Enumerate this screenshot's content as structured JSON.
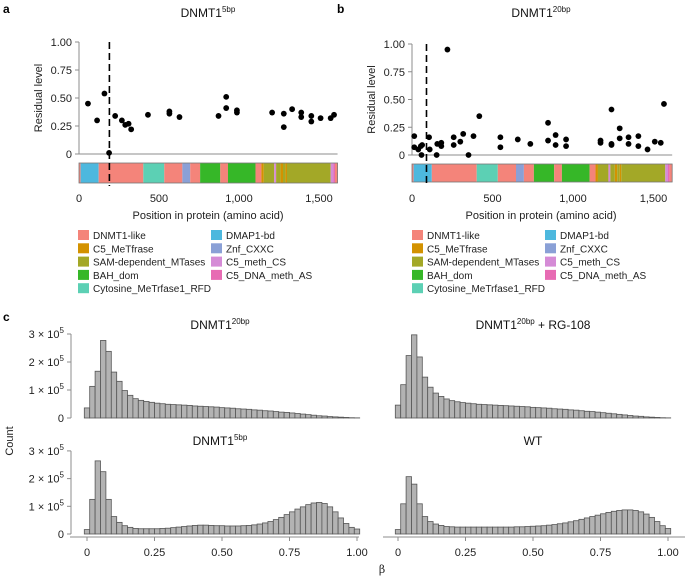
{
  "panel_labels": [
    "a",
    "b",
    "c"
  ],
  "domain_colors": {
    "DNMT1-like": "#F4847A",
    "C5_MeTfrase": "#D39200",
    "SAM-dependent_MTases": "#A3A827",
    "BAH_dom": "#36B728",
    "Cytosine_MeTrfase1_RFD": "#5CD0B4",
    "DMAP1-bd": "#4DB8DE",
    "Znf_CXXC": "#8AA0D6",
    "C5_meth_CS": "#D58BD6",
    "C5_DNA_meth_AS": "#E76BB3"
  },
  "legend": {
    "col1": [
      "DNMT1-like",
      "C5_MeTfrase",
      "SAM-dependent_MTases",
      "BAH_dom",
      "Cytosine_MeTrfase1_RFD"
    ],
    "col2": [
      "DMAP1-bd",
      "Znf_CXXC",
      "C5_meth_CS",
      "C5_DNA_meth_AS"
    ]
  },
  "chart_data": [
    {
      "id": "a",
      "type": "scatter",
      "title": {
        "base": "DNMT1",
        "sup": "5bp",
        "suffix": ""
      },
      "xlabel": "Position in protein (amino acid)",
      "ylabel": "Residual level",
      "xlim": [
        0,
        1616
      ],
      "ylim": [
        0,
        1
      ],
      "xticks": [
        0,
        500,
        1000,
        1500
      ],
      "xtick_labels": [
        "0",
        "500",
        "1,000",
        "1,500"
      ],
      "yticks": [
        0,
        0.25,
        0.5,
        0.75,
        1.0
      ],
      "ytick_labels": [
        "0",
        "0.25",
        "0.50",
        "0.75",
        "1.00"
      ],
      "dashed_line_x": 190,
      "points": [
        [
          56,
          0.45
        ],
        [
          113,
          0.3
        ],
        [
          159,
          0.54
        ],
        [
          188,
          0.01
        ],
        [
          226,
          0.34
        ],
        [
          268,
          0.3
        ],
        [
          289,
          0.26
        ],
        [
          310,
          0.27
        ],
        [
          326,
          0.22
        ],
        [
          431,
          0.35
        ],
        [
          565,
          0.38
        ],
        [
          565,
          0.36
        ],
        [
          628,
          0.33
        ],
        [
          872,
          0.34
        ],
        [
          920,
          0.51
        ],
        [
          920,
          0.41
        ],
        [
          987,
          0.39
        ],
        [
          987,
          0.37
        ],
        [
          1207,
          0.37
        ],
        [
          1280,
          0.36
        ],
        [
          1280,
          0.24
        ],
        [
          1332,
          0.4
        ],
        [
          1389,
          0.37
        ],
        [
          1389,
          0.33
        ],
        [
          1452,
          0.34
        ],
        [
          1452,
          0.29
        ],
        [
          1510,
          0.32
        ],
        [
          1573,
          0.32
        ],
        [
          1594,
          0.35
        ]
      ],
      "domains": [
        [
          0,
          10,
          "DNMT1-like"
        ],
        [
          10,
          123,
          "DMAP1-bd"
        ],
        [
          123,
          402,
          "DNMT1-like"
        ],
        [
          402,
          533,
          "Cytosine_MeTrfase1_RFD"
        ],
        [
          533,
          646,
          "DNMT1-like"
        ],
        [
          646,
          695,
          "Znf_CXXC"
        ],
        [
          695,
          757,
          "DNMT1-like"
        ],
        [
          757,
          883,
          "BAH_dom"
        ],
        [
          883,
          931,
          "DNMT1-like"
        ],
        [
          931,
          1103,
          "BAH_dom"
        ],
        [
          1103,
          1140,
          "DNMT1-like"
        ],
        [
          1140,
          1155,
          "C5_MeTfrase"
        ],
        [
          1155,
          1220,
          "SAM-dependent_MTases"
        ],
        [
          1220,
          1232,
          "C5_meth_CS"
        ],
        [
          1232,
          1260,
          "SAM-dependent_MTases"
        ],
        [
          1260,
          1275,
          "C5_MeTfrase"
        ],
        [
          1275,
          1290,
          "SAM-dependent_MTases"
        ],
        [
          1290,
          1300,
          "C5_MeTfrase"
        ],
        [
          1300,
          1573,
          "SAM-dependent_MTases"
        ],
        [
          1573,
          1590,
          "C5_meth_CS"
        ],
        [
          1590,
          1600,
          "C5_DNA_meth_AS"
        ],
        [
          1600,
          1616,
          "DNMT1-like"
        ]
      ]
    },
    {
      "id": "b",
      "type": "scatter",
      "title": {
        "base": "DNMT1",
        "sup": "20bp",
        "suffix": ""
      },
      "xlabel": "Position in protein (amino acid)",
      "ylabel": "Residual level",
      "xlim": [
        0,
        1616
      ],
      "ylim": [
        0,
        1
      ],
      "xticks": [
        0,
        500,
        1000,
        1500
      ],
      "xtick_labels": [
        "0",
        "500",
        "1,000",
        "1,500"
      ],
      "yticks": [
        0,
        0.25,
        0.5,
        0.75,
        1.0
      ],
      "ytick_labels": [
        "0",
        "0.25",
        "0.50",
        "0.75",
        "1.00"
      ],
      "dashed_line_x": 90,
      "points": [
        [
          14,
          0.17
        ],
        [
          14,
          0.07
        ],
        [
          39,
          0.05
        ],
        [
          55,
          0.08
        ],
        [
          59,
          0.0
        ],
        [
          63,
          0.09
        ],
        [
          106,
          0.16
        ],
        [
          110,
          0.05
        ],
        [
          153,
          0.0
        ],
        [
          157,
          0.1
        ],
        [
          182,
          0.11
        ],
        [
          182,
          0.08
        ],
        [
          220,
          0.95
        ],
        [
          259,
          0.16
        ],
        [
          259,
          0.09
        ],
        [
          300,
          0.12
        ],
        [
          318,
          0.19
        ],
        [
          351,
          0.0
        ],
        [
          382,
          0.17
        ],
        [
          418,
          0.35
        ],
        [
          549,
          0.16
        ],
        [
          549,
          0.07
        ],
        [
          657,
          0.14
        ],
        [
          735,
          0.1
        ],
        [
          845,
          0.29
        ],
        [
          845,
          0.13
        ],
        [
          892,
          0.18
        ],
        [
          892,
          0.09
        ],
        [
          957,
          0.14
        ],
        [
          957,
          0.08
        ],
        [
          1171,
          0.13
        ],
        [
          1171,
          0.11
        ],
        [
          1239,
          0.41
        ],
        [
          1239,
          0.1
        ],
        [
          1239,
          0.09
        ],
        [
          1290,
          0.24
        ],
        [
          1290,
          0.15
        ],
        [
          1345,
          0.16
        ],
        [
          1345,
          0.1
        ],
        [
          1406,
          0.17
        ],
        [
          1406,
          0.08
        ],
        [
          1463,
          0.05
        ],
        [
          1508,
          0.12
        ],
        [
          1545,
          0.11
        ],
        [
          1565,
          0.46
        ]
      ],
      "domains": [
        [
          0,
          10,
          "DNMT1-like"
        ],
        [
          10,
          123,
          "DMAP1-bd"
        ],
        [
          123,
          402,
          "DNMT1-like"
        ],
        [
          402,
          533,
          "Cytosine_MeTrfase1_RFD"
        ],
        [
          533,
          646,
          "DNMT1-like"
        ],
        [
          646,
          695,
          "Znf_CXXC"
        ],
        [
          695,
          757,
          "DNMT1-like"
        ],
        [
          757,
          883,
          "BAH_dom"
        ],
        [
          883,
          931,
          "DNMT1-like"
        ],
        [
          931,
          1103,
          "BAH_dom"
        ],
        [
          1103,
          1140,
          "DNMT1-like"
        ],
        [
          1140,
          1155,
          "C5_MeTfrase"
        ],
        [
          1155,
          1220,
          "SAM-dependent_MTases"
        ],
        [
          1220,
          1232,
          "C5_meth_CS"
        ],
        [
          1232,
          1260,
          "SAM-dependent_MTases"
        ],
        [
          1260,
          1275,
          "C5_MeTfrase"
        ],
        [
          1275,
          1290,
          "SAM-dependent_MTases"
        ],
        [
          1290,
          1300,
          "C5_MeTfrase"
        ],
        [
          1300,
          1573,
          "SAM-dependent_MTases"
        ],
        [
          1573,
          1590,
          "C5_meth_CS"
        ],
        [
          1590,
          1600,
          "C5_DNA_meth_AS"
        ],
        [
          1600,
          1616,
          "DNMT1-like"
        ]
      ]
    },
    {
      "id": "c",
      "type": "bar",
      "subtype": "histogram",
      "xlabel": "β",
      "ylabel": "Count",
      "bin_width": 0.02,
      "bin_centers_start": 0,
      "xlim": [
        -0.01,
        1.01
      ],
      "ylim": [
        0,
        300000
      ],
      "count_unit": 100000,
      "xticks": [
        0,
        0.25,
        0.5,
        0.75,
        1.0
      ],
      "xtick_labels": [
        "0",
        "0.25",
        "0.50",
        "0.75",
        "1.00"
      ],
      "ytick_labels": [
        {
          "base": "0",
          "sup": ""
        },
        {
          "base": "1 × 10",
          "sup": "5"
        },
        {
          "base": "2 × 10",
          "sup": "5"
        },
        {
          "base": "3 × 10",
          "sup": "5"
        }
      ],
      "bar_color": "#b3b3b3",
      "panels": [
        {
          "title": {
            "base": "DNMT1",
            "sup": "20bp",
            "suffix": ""
          },
          "values": [
            0.36,
            1.13,
            1.67,
            2.77,
            2.38,
            1.64,
            1.31,
            0.98,
            0.81,
            0.69,
            0.63,
            0.59,
            0.56,
            0.53,
            0.51,
            0.49,
            0.48,
            0.47,
            0.46,
            0.45,
            0.43,
            0.42,
            0.41,
            0.4,
            0.39,
            0.37,
            0.36,
            0.35,
            0.33,
            0.32,
            0.31,
            0.29,
            0.28,
            0.26,
            0.25,
            0.23,
            0.21,
            0.2,
            0.18,
            0.16,
            0.14,
            0.12,
            0.1,
            0.08,
            0.07,
            0.05,
            0.04,
            0.03,
            0.02,
            0.01,
            0.005
          ]
        },
        {
          "title": {
            "base": "DNMT1",
            "sup": "20bp",
            "suffix": " + RG-108"
          },
          "values": [
            0.46,
            1.19,
            2.23,
            2.97,
            2.18,
            1.46,
            1.1,
            0.89,
            0.77,
            0.68,
            0.62,
            0.58,
            0.55,
            0.53,
            0.51,
            0.49,
            0.48,
            0.47,
            0.46,
            0.45,
            0.44,
            0.43,
            0.42,
            0.41,
            0.4,
            0.38,
            0.37,
            0.36,
            0.35,
            0.33,
            0.32,
            0.31,
            0.29,
            0.28,
            0.26,
            0.24,
            0.23,
            0.21,
            0.19,
            0.17,
            0.15,
            0.13,
            0.11,
            0.09,
            0.07,
            0.06,
            0.04,
            0.03,
            0.02,
            0.01,
            0.005
          ]
        },
        {
          "title": {
            "base": "DNMT1",
            "sup": "5bp",
            "suffix": ""
          },
          "values": [
            0.16,
            1.25,
            2.64,
            2.25,
            1.25,
            0.63,
            0.42,
            0.3,
            0.24,
            0.2,
            0.19,
            0.19,
            0.19,
            0.19,
            0.2,
            0.21,
            0.23,
            0.25,
            0.27,
            0.29,
            0.31,
            0.32,
            0.32,
            0.31,
            0.3,
            0.3,
            0.29,
            0.29,
            0.29,
            0.3,
            0.31,
            0.33,
            0.36,
            0.4,
            0.45,
            0.52,
            0.6,
            0.7,
            0.8,
            0.9,
            0.98,
            1.06,
            1.12,
            1.14,
            1.1,
            0.98,
            0.8,
            0.58,
            0.38,
            0.24,
            0.18
          ]
        },
        {
          "title": {
            "base": "WT",
            "sup": "",
            "suffix": ""
          },
          "values": [
            0.16,
            1.09,
            2.07,
            1.8,
            1.09,
            0.63,
            0.45,
            0.36,
            0.31,
            0.27,
            0.26,
            0.25,
            0.25,
            0.25,
            0.25,
            0.25,
            0.25,
            0.25,
            0.25,
            0.25,
            0.25,
            0.25,
            0.26,
            0.26,
            0.27,
            0.28,
            0.29,
            0.3,
            0.32,
            0.34,
            0.37,
            0.4,
            0.44,
            0.48,
            0.53,
            0.58,
            0.63,
            0.68,
            0.73,
            0.78,
            0.82,
            0.85,
            0.87,
            0.87,
            0.85,
            0.8,
            0.72,
            0.6,
            0.45,
            0.3,
            0.2
          ]
        }
      ]
    }
  ]
}
